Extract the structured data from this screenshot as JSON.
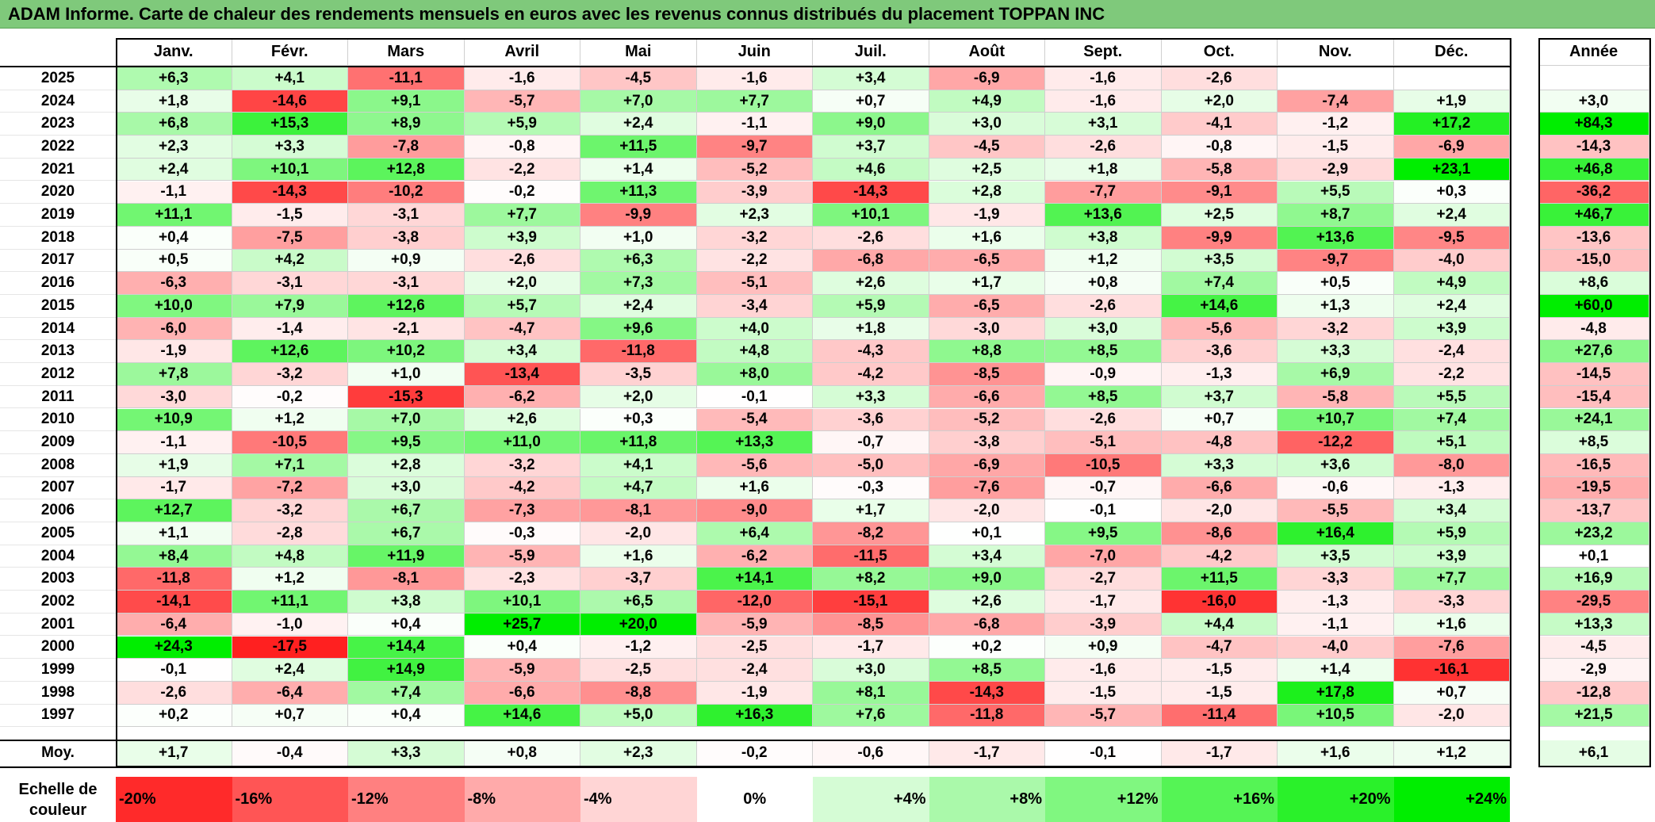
{
  "title": "ADAM Informe. Carte de chaleur des rendements mensuels en euros avec les revenus connus distribués du placement TOPPAN INC",
  "chart_data": {
    "type": "heatmap",
    "title": "ADAM Informe. Carte de chaleur des rendements mensuels en euros avec les revenus connus distribués du placement TOPPAN INC",
    "columns": [
      "Janv.",
      "Févr.",
      "Mars",
      "Avril",
      "Mai",
      "Juin",
      "Juil.",
      "Août",
      "Sept.",
      "Oct.",
      "Nov.",
      "Déc."
    ],
    "year_column_label": "Année",
    "rows": [
      {
        "year": "2025",
        "months": [
          "+6,3",
          "+4,1",
          "-11,1",
          "-1,6",
          "-4,5",
          "-1,6",
          "+3,4",
          "-6,9",
          "-1,6",
          "-2,6",
          "",
          ""
        ],
        "annual": ""
      },
      {
        "year": "2024",
        "months": [
          "+1,8",
          "-14,6",
          "+9,1",
          "-5,7",
          "+7,0",
          "+7,7",
          "+0,7",
          "+4,9",
          "-1,6",
          "+2,0",
          "-7,4",
          "+1,9"
        ],
        "annual": "+3,0"
      },
      {
        "year": "2023",
        "months": [
          "+6,8",
          "+15,3",
          "+8,9",
          "+5,9",
          "+2,4",
          "-1,1",
          "+9,0",
          "+3,0",
          "+3,1",
          "-4,1",
          "-1,2",
          "+17,2"
        ],
        "annual": "+84,3"
      },
      {
        "year": "2022",
        "months": [
          "+2,3",
          "+3,3",
          "-7,8",
          "-0,8",
          "+11,5",
          "-9,7",
          "+3,7",
          "-4,5",
          "-2,6",
          "-0,8",
          "-1,5",
          "-6,9"
        ],
        "annual": "-14,3"
      },
      {
        "year": "2021",
        "months": [
          "+2,4",
          "+10,1",
          "+12,8",
          "-2,2",
          "+1,4",
          "-5,2",
          "+4,6",
          "+2,5",
          "+1,8",
          "-5,8",
          "-2,9",
          "+23,1"
        ],
        "annual": "+46,8"
      },
      {
        "year": "2020",
        "months": [
          "-1,1",
          "-14,3",
          "-10,2",
          "-0,2",
          "+11,3",
          "-3,9",
          "-14,3",
          "+2,8",
          "-7,7",
          "-9,1",
          "+5,5",
          "+0,3"
        ],
        "annual": "-36,2"
      },
      {
        "year": "2019",
        "months": [
          "+11,1",
          "-1,5",
          "-3,1",
          "+7,7",
          "-9,9",
          "+2,3",
          "+10,1",
          "-1,9",
          "+13,6",
          "+2,5",
          "+8,7",
          "+2,4"
        ],
        "annual": "+46,7"
      },
      {
        "year": "2018",
        "months": [
          "+0,4",
          "-7,5",
          "-3,8",
          "+3,9",
          "+1,0",
          "-3,2",
          "-2,6",
          "+1,6",
          "+3,8",
          "-9,9",
          "+13,6",
          "-9,5"
        ],
        "annual": "-13,6"
      },
      {
        "year": "2017",
        "months": [
          "+0,5",
          "+4,2",
          "+0,9",
          "-2,6",
          "+6,3",
          "-2,2",
          "-6,8",
          "-6,5",
          "+1,2",
          "+3,5",
          "-9,7",
          "-4,0"
        ],
        "annual": "-15,0"
      },
      {
        "year": "2016",
        "months": [
          "-6,3",
          "-3,1",
          "-3,1",
          "+2,0",
          "+7,3",
          "-5,1",
          "+2,6",
          "+1,7",
          "+0,8",
          "+7,4",
          "+0,5",
          "+4,9"
        ],
        "annual": "+8,6"
      },
      {
        "year": "2015",
        "months": [
          "+10,0",
          "+7,9",
          "+12,6",
          "+5,7",
          "+2,4",
          "-3,4",
          "+5,9",
          "-6,5",
          "-2,6",
          "+14,6",
          "+1,3",
          "+2,4"
        ],
        "annual": "+60,0"
      },
      {
        "year": "2014",
        "months": [
          "-6,0",
          "-1,4",
          "-2,1",
          "-4,7",
          "+9,6",
          "+4,0",
          "+1,8",
          "-3,0",
          "+3,0",
          "-5,6",
          "-3,2",
          "+3,9"
        ],
        "annual": "-4,8"
      },
      {
        "year": "2013",
        "months": [
          "-1,9",
          "+12,6",
          "+10,2",
          "+3,4",
          "-11,8",
          "+4,8",
          "-4,3",
          "+8,8",
          "+8,5",
          "-3,6",
          "+3,3",
          "-2,4"
        ],
        "annual": "+27,6"
      },
      {
        "year": "2012",
        "months": [
          "+7,8",
          "-3,2",
          "+1,0",
          "-13,4",
          "-3,5",
          "+8,0",
          "-4,2",
          "-8,5",
          "-0,9",
          "-1,3",
          "+6,9",
          "-2,2"
        ],
        "annual": "-14,5"
      },
      {
        "year": "2011",
        "months": [
          "-3,0",
          "-0,2",
          "-15,3",
          "-6,2",
          "+2,0",
          "-0,1",
          "+3,3",
          "-6,6",
          "+8,5",
          "+3,7",
          "-5,8",
          "+5,5"
        ],
        "annual": "-15,4"
      },
      {
        "year": "2010",
        "months": [
          "+10,9",
          "+1,2",
          "+7,0",
          "+2,6",
          "+0,3",
          "-5,4",
          "-3,6",
          "-5,2",
          "-2,6",
          "+0,7",
          "+10,7",
          "+7,4"
        ],
        "annual": "+24,1"
      },
      {
        "year": "2009",
        "months": [
          "-1,1",
          "-10,5",
          "+9,5",
          "+11,0",
          "+11,8",
          "+13,3",
          "-0,7",
          "-3,8",
          "-5,1",
          "-4,8",
          "-12,2",
          "+5,1"
        ],
        "annual": "+8,5"
      },
      {
        "year": "2008",
        "months": [
          "+1,9",
          "+7,1",
          "+2,8",
          "-3,2",
          "+4,1",
          "-5,6",
          "-5,0",
          "-6,9",
          "-10,5",
          "+3,3",
          "+3,6",
          "-8,0"
        ],
        "annual": "-16,5"
      },
      {
        "year": "2007",
        "months": [
          "-1,7",
          "-7,2",
          "+3,0",
          "-4,2",
          "+4,7",
          "+1,6",
          "-0,3",
          "-7,6",
          "-0,7",
          "-6,6",
          "-0,6",
          "-1,3"
        ],
        "annual": "-19,5"
      },
      {
        "year": "2006",
        "months": [
          "+12,7",
          "-3,2",
          "+6,7",
          "-7,3",
          "-8,1",
          "-9,0",
          "+1,7",
          "-2,0",
          "-0,1",
          "-2,0",
          "-5,5",
          "+3,4"
        ],
        "annual": "-13,7"
      },
      {
        "year": "2005",
        "months": [
          "+1,1",
          "-2,8",
          "+6,7",
          "-0,3",
          "-2,0",
          "+6,4",
          "-8,2",
          "+0,1",
          "+9,5",
          "-8,6",
          "+16,4",
          "+5,9"
        ],
        "annual": "+23,2"
      },
      {
        "year": "2004",
        "months": [
          "+8,4",
          "+4,8",
          "+11,9",
          "-5,9",
          "+1,6",
          "-6,2",
          "-11,5",
          "+3,4",
          "-7,0",
          "-4,2",
          "+3,5",
          "+3,9"
        ],
        "annual": "+0,1"
      },
      {
        "year": "2003",
        "months": [
          "-11,8",
          "+1,2",
          "-8,1",
          "-2,3",
          "-3,7",
          "+14,1",
          "+8,2",
          "+9,0",
          "-2,7",
          "+11,5",
          "-3,3",
          "+7,7"
        ],
        "annual": "+16,9"
      },
      {
        "year": "2002",
        "months": [
          "-14,1",
          "+11,1",
          "+3,8",
          "+10,1",
          "+6,5",
          "-12,0",
          "-15,1",
          "+2,6",
          "-1,7",
          "-16,0",
          "-1,3",
          "-3,3"
        ],
        "annual": "-29,5"
      },
      {
        "year": "2001",
        "months": [
          "-6,4",
          "-1,0",
          "+0,4",
          "+25,7",
          "+20,0",
          "-5,9",
          "-8,5",
          "-6,8",
          "-3,9",
          "+4,4",
          "-1,1",
          "+1,6"
        ],
        "annual": "+13,3"
      },
      {
        "year": "2000",
        "months": [
          "+24,3",
          "-17,5",
          "+14,4",
          "+0,4",
          "-1,2",
          "-2,5",
          "-1,7",
          "+0,2",
          "+0,9",
          "-4,7",
          "-4,0",
          "-7,6"
        ],
        "annual": "-4,5"
      },
      {
        "year": "1999",
        "months": [
          "-0,1",
          "+2,4",
          "+14,9",
          "-5,9",
          "-2,5",
          "-2,4",
          "+3,0",
          "+8,5",
          "-1,6",
          "-1,5",
          "+1,4",
          "-16,1"
        ],
        "annual": "-2,9"
      },
      {
        "year": "1998",
        "months": [
          "-2,6",
          "-6,4",
          "+7,4",
          "-6,6",
          "-8,8",
          "-1,9",
          "+8,1",
          "-14,3",
          "-1,5",
          "-1,5",
          "+17,8",
          "+0,7"
        ],
        "annual": "-12,8"
      },
      {
        "year": "1997",
        "months": [
          "+0,2",
          "+0,7",
          "+0,4",
          "+14,6",
          "+5,0",
          "+16,3",
          "+7,6",
          "-11,8",
          "-5,7",
          "-11,4",
          "+10,5",
          "-2,0"
        ],
        "annual": "+21,5"
      }
    ],
    "average": {
      "label": "Moy.",
      "months": [
        "+1,7",
        "-0,4",
        "+3,3",
        "+0,8",
        "+2,3",
        "-0,2",
        "-0,6",
        "-1,7",
        "-0,1",
        "-1,7",
        "+1,6",
        "+1,2"
      ],
      "annual": "+6,1"
    },
    "color_scale": {
      "label": "Echelle de couleur",
      "stops": [
        "-20%",
        "-16%",
        "-12%",
        "-8%",
        "-4%",
        "0%",
        "+4%",
        "+8%",
        "+12%",
        "+16%",
        "+20%",
        "+24%"
      ],
      "negative_color": "#ff0000",
      "neutral_color": "#ffffff",
      "positive_color": "#00ee00"
    }
  }
}
